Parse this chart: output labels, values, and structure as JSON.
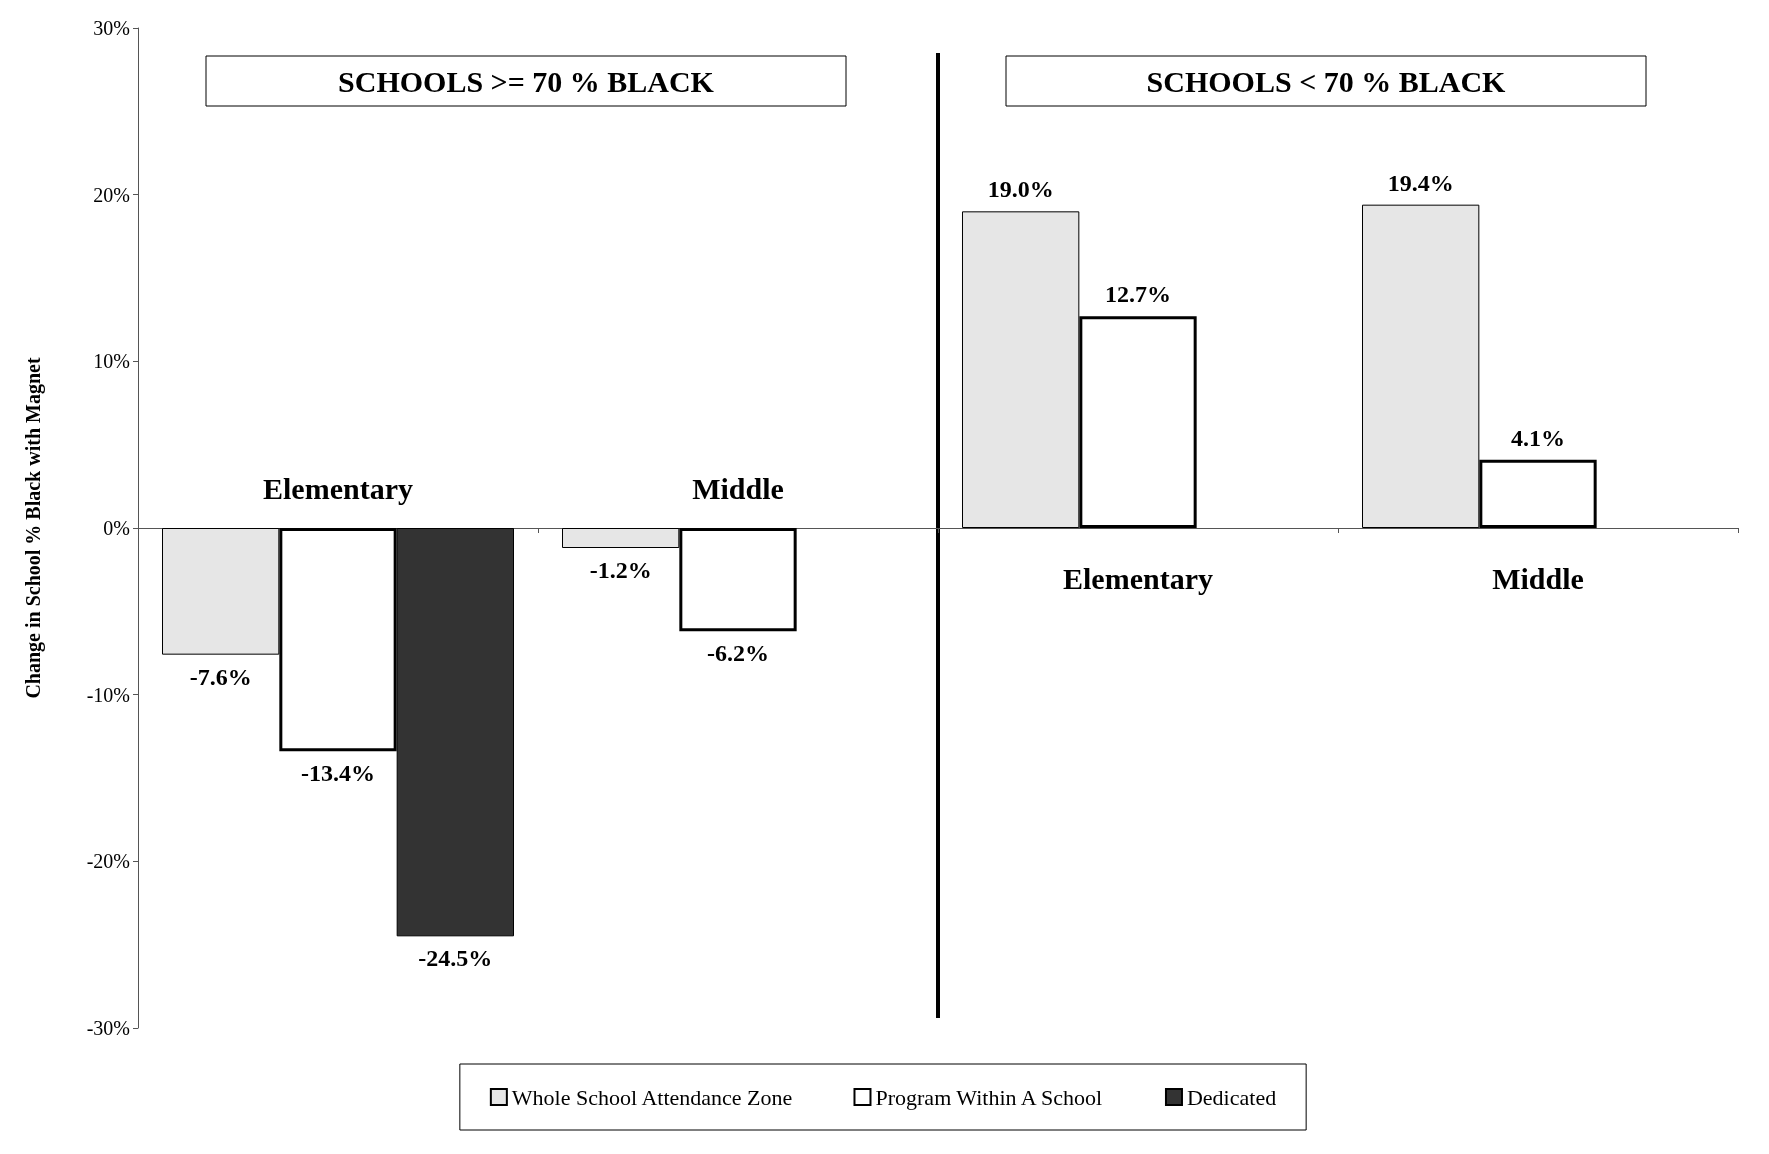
{
  "chart_data": {
    "type": "bar",
    "ylabel": "Change in School % Black with Magnet",
    "categories": [
      "Elementary",
      "Middle",
      "Elementary",
      "Middle"
    ],
    "series": [
      {
        "name": "Whole School Attendance Zone",
        "color": "#e6e6e6",
        "values": [
          -7.6,
          -1.2,
          19.0,
          19.4
        ],
        "value_labels": [
          "-7.6%",
          "-1.2%",
          "19.0%",
          "19.4%"
        ]
      },
      {
        "name": "Program Within A School",
        "color": "#ffffff",
        "values": [
          -13.4,
          -6.2,
          12.7,
          4.1
        ],
        "value_labels": [
          "-13.4%",
          "-6.2%",
          "12.7%",
          "4.1%"
        ]
      },
      {
        "name": "Dedicated",
        "color": "#333333",
        "values": [
          -24.5,
          null,
          null,
          null
        ],
        "value_labels": [
          "-24.5%",
          null,
          null,
          null
        ]
      }
    ],
    "ylim": [
      -30,
      30
    ],
    "yticks": [
      {
        "value": -30,
        "label": "-30%"
      },
      {
        "value": -20,
        "label": "-20%"
      },
      {
        "value": -10,
        "label": "-10%"
      },
      {
        "value": 0,
        "label": "0%"
      },
      {
        "value": 10,
        "label": "10%"
      },
      {
        "value": 20,
        "label": "20%"
      },
      {
        "value": 30,
        "label": "30%"
      }
    ],
    "annotations": [
      "SCHOOLS >= 70 % BLACK",
      "SCHOOLS < 70 % BLACK"
    ],
    "grid": false,
    "legend": "bottom"
  }
}
